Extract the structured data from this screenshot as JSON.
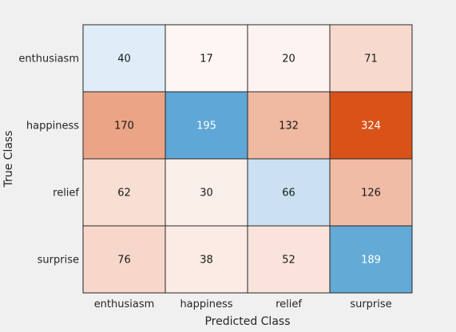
{
  "chart_data": {
    "type": "heatmap",
    "title": "",
    "xlabel": "Predicted Class",
    "ylabel": "True Class",
    "x_categories": [
      "enthusiasm",
      "happiness",
      "relief",
      "surprise"
    ],
    "y_categories": [
      "enthusiasm",
      "happiness",
      "relief",
      "surprise"
    ],
    "values": [
      [
        40,
        17,
        20,
        71
      ],
      [
        170,
        195,
        132,
        324
      ],
      [
        62,
        30,
        66,
        126
      ],
      [
        76,
        38,
        52,
        189
      ]
    ],
    "colors": {
      "correct_max": "#5ea7d6",
      "incorrect_max": "#d95319",
      "zero": "#ffffff",
      "light_text": "#ffffff",
      "dark_text": "#1a1a1a",
      "grid": "#262626",
      "background": "#f0f0f0"
    }
  }
}
